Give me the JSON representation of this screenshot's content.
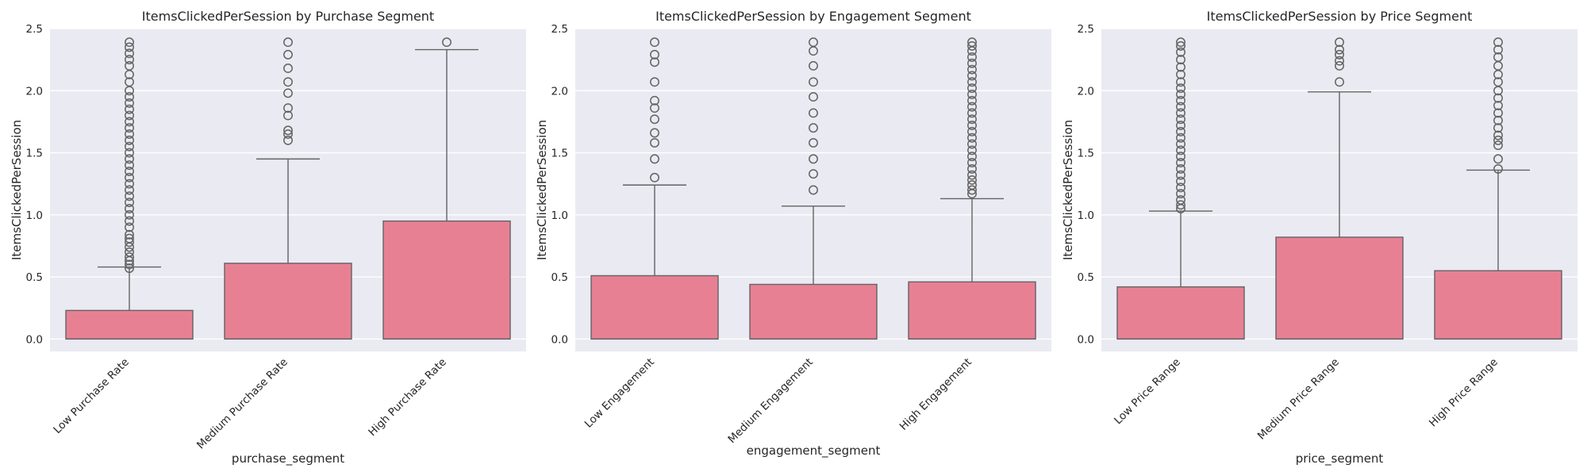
{
  "colors": {
    "box_fill": "#e88094",
    "box_edge": "#636363",
    "panel_bg": "#eaeaf2",
    "grid": "#ffffff"
  },
  "chart_data": [
    {
      "type": "box",
      "title": "ItemsClickedPerSession by Purchase Segment",
      "xlabel": "purchase_segment",
      "ylabel": "ItemsClickedPerSession",
      "ylim": [
        -0.1,
        2.5
      ],
      "yticks": [
        "0.0",
        "0.5",
        "1.0",
        "1.5",
        "2.0",
        "2.5"
      ],
      "grid": true,
      "categories": [
        "Low Purchase Rate",
        "Medium Purchase Rate",
        "High Purchase Rate"
      ],
      "boxes": [
        {
          "min": 0.0,
          "q1": 0.0,
          "median": 0.0,
          "q3": 0.23,
          "max": 0.58,
          "outliers": [
            0.57,
            0.6,
            0.63,
            0.66,
            0.7,
            0.74,
            0.78,
            0.81,
            0.84,
            0.9,
            0.95,
            1.0,
            1.05,
            1.1,
            1.15,
            1.2,
            1.25,
            1.3,
            1.35,
            1.4,
            1.45,
            1.5,
            1.55,
            1.6,
            1.65,
            1.7,
            1.75,
            1.8,
            1.85,
            1.9,
            1.95,
            2.0,
            2.07,
            2.13,
            2.2,
            2.25,
            2.3,
            2.35,
            2.39
          ]
        },
        {
          "min": 0.0,
          "q1": 0.0,
          "median": 0.0,
          "q3": 0.61,
          "max": 1.45,
          "outliers": [
            1.6,
            1.65,
            1.68,
            1.8,
            1.86,
            1.98,
            2.07,
            2.18,
            2.29,
            2.39
          ]
        },
        {
          "min": 0.0,
          "q1": 0.0,
          "median": 0.0,
          "q3": 0.95,
          "max": 2.33,
          "outliers": [
            2.39
          ]
        }
      ]
    },
    {
      "type": "box",
      "title": "ItemsClickedPerSession by Engagement Segment",
      "xlabel": "engagement_segment",
      "ylabel": "ItemsClickedPerSession",
      "ylim": [
        -0.1,
        2.5
      ],
      "yticks": [
        "0.0",
        "0.5",
        "1.0",
        "1.5",
        "2.0",
        "2.5"
      ],
      "grid": true,
      "categories": [
        "Low Engagement",
        "Medium Engagement",
        "High Engagement"
      ],
      "boxes": [
        {
          "min": 0.0,
          "q1": 0.0,
          "median": 0.0,
          "q3": 0.51,
          "max": 1.24,
          "outliers": [
            1.3,
            1.45,
            1.58,
            1.66,
            1.77,
            1.86,
            1.92,
            2.07,
            2.23,
            2.29,
            2.39
          ]
        },
        {
          "min": 0.0,
          "q1": 0.0,
          "median": 0.0,
          "q3": 0.44,
          "max": 1.07,
          "outliers": [
            1.2,
            1.33,
            1.45,
            1.58,
            1.7,
            1.82,
            1.95,
            2.07,
            2.2,
            2.32,
            2.39
          ]
        },
        {
          "min": 0.0,
          "q1": 0.0,
          "median": 0.0,
          "q3": 0.46,
          "max": 1.13,
          "outliers": [
            1.17,
            1.2,
            1.24,
            1.28,
            1.32,
            1.37,
            1.42,
            1.47,
            1.52,
            1.57,
            1.62,
            1.67,
            1.72,
            1.77,
            1.82,
            1.87,
            1.92,
            1.97,
            2.02,
            2.07,
            2.12,
            2.17,
            2.22,
            2.27,
            2.32,
            2.36,
            2.39
          ]
        }
      ]
    },
    {
      "type": "box",
      "title": "ItemsClickedPerSession by Price Segment",
      "xlabel": "price_segment",
      "ylabel": "ItemsClickedPerSession",
      "ylim": [
        -0.1,
        2.5
      ],
      "yticks": [
        "0.0",
        "0.5",
        "1.0",
        "1.5",
        "2.0",
        "2.5"
      ],
      "grid": true,
      "categories": [
        "Low Price Range",
        "Medium Price Range",
        "High Price Range"
      ],
      "boxes": [
        {
          "min": 0.0,
          "q1": 0.0,
          "median": 0.0,
          "q3": 0.42,
          "max": 1.03,
          "outliers": [
            1.05,
            1.08,
            1.12,
            1.17,
            1.22,
            1.27,
            1.32,
            1.37,
            1.42,
            1.47,
            1.52,
            1.57,
            1.62,
            1.67,
            1.72,
            1.77,
            1.82,
            1.87,
            1.92,
            1.97,
            2.02,
            2.07,
            2.13,
            2.19,
            2.25,
            2.31,
            2.36,
            2.39
          ]
        },
        {
          "min": 0.0,
          "q1": 0.0,
          "median": 0.0,
          "q3": 0.82,
          "max": 1.99,
          "outliers": [
            2.07,
            2.2,
            2.24,
            2.29,
            2.33,
            2.39
          ]
        },
        {
          "min": 0.0,
          "q1": 0.0,
          "median": 0.0,
          "q3": 0.55,
          "max": 1.36,
          "outliers": [
            1.37,
            1.45,
            1.56,
            1.6,
            1.64,
            1.7,
            1.76,
            1.82,
            1.88,
            1.94,
            2.0,
            2.07,
            2.13,
            2.2,
            2.27,
            2.33,
            2.39
          ]
        }
      ]
    }
  ]
}
